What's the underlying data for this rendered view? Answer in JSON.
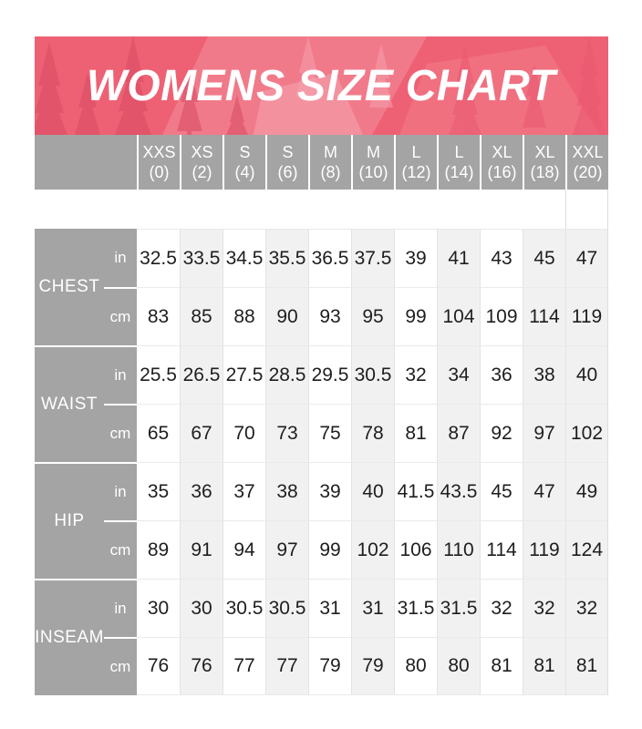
{
  "banner": {
    "title": "WOMENS SIZE CHART"
  },
  "sizes": [
    {
      "label": "XXS",
      "number": "(0)"
    },
    {
      "label": "XS",
      "number": "(2)"
    },
    {
      "label": "S",
      "number": "(4)"
    },
    {
      "label": "S",
      "number": "(6)"
    },
    {
      "label": "M",
      "number": "(8)"
    },
    {
      "label": "M",
      "number": "(10)"
    },
    {
      "label": "L",
      "number": "(12)"
    },
    {
      "label": "L",
      "number": "(14)"
    },
    {
      "label": "XL",
      "number": "(16)"
    },
    {
      "label": "XL",
      "number": "(18)"
    },
    {
      "label": "XXL",
      "number": "(20)"
    }
  ],
  "chart_data": {
    "type": "table",
    "title": "WOMENS SIZE CHART",
    "columns": [
      "XXS (0)",
      "XS (2)",
      "S (4)",
      "S (6)",
      "M (8)",
      "M (10)",
      "L (12)",
      "L (14)",
      "XL (16)",
      "XL (18)",
      "XXL (20)"
    ],
    "rows": [
      {
        "measurement": "CHEST",
        "unit": "in",
        "values": [
          32.5,
          33.5,
          34.5,
          35.5,
          36.5,
          37.5,
          39,
          41,
          43,
          45,
          47
        ]
      },
      {
        "measurement": "CHEST",
        "unit": "cm",
        "values": [
          83,
          85,
          88,
          90,
          93,
          95,
          99,
          104,
          109,
          114,
          119
        ]
      },
      {
        "measurement": "WAIST",
        "unit": "in",
        "values": [
          25.5,
          26.5,
          27.5,
          28.5,
          29.5,
          30.5,
          32,
          34,
          36,
          38,
          40
        ]
      },
      {
        "measurement": "WAIST",
        "unit": "cm",
        "values": [
          65,
          67,
          70,
          73,
          75,
          78,
          81,
          87,
          92,
          97,
          102
        ]
      },
      {
        "measurement": "HIP",
        "unit": "in",
        "values": [
          35,
          36,
          37,
          38,
          39,
          40,
          41.5,
          43.5,
          45,
          47,
          49
        ]
      },
      {
        "measurement": "HIP",
        "unit": "cm",
        "values": [
          89,
          91,
          94,
          97,
          99,
          102,
          106,
          110,
          114,
          119,
          124
        ]
      },
      {
        "measurement": "INSEAM",
        "unit": "in",
        "values": [
          30,
          30,
          30.5,
          30.5,
          31,
          31,
          31.5,
          31.5,
          32,
          32,
          32
        ]
      },
      {
        "measurement": "INSEAM",
        "unit": "cm",
        "values": [
          76,
          76,
          77,
          77,
          79,
          79,
          80,
          80,
          81,
          81,
          81
        ]
      }
    ]
  },
  "colors": {
    "banner_pink": "#ee6174",
    "banner_tree_dark": "#e2germ4860",
    "header_gray": "#a4a4a4",
    "column_light": "#f1f1f1",
    "column_white": "#ffffff",
    "value_text": "#1e1e1e",
    "grid_line": "#e3e3e3"
  }
}
